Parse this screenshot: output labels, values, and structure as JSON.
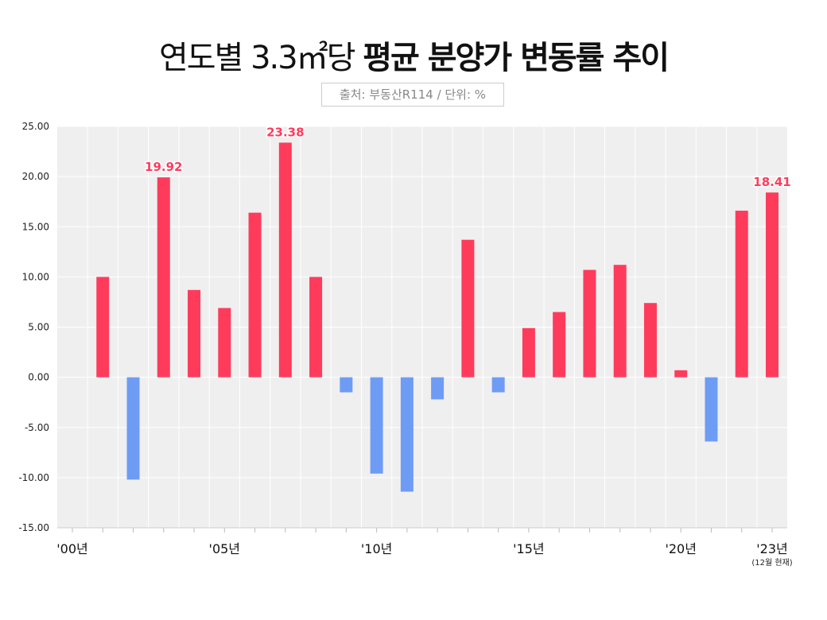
{
  "chart_data": {
    "type": "bar",
    "title_regular": "연도별 3.3㎡당",
    "title_bold": "평균 분양가 변동률 추이",
    "source": "출처: 부동산R114 / 단위: %",
    "categories": [
      "2000",
      "2001",
      "2002",
      "2003",
      "2004",
      "2005",
      "2006",
      "2007",
      "2008",
      "2009",
      "2010",
      "2011",
      "2012",
      "2013",
      "2014",
      "2015",
      "2016",
      "2017",
      "2018",
      "2019",
      "2020",
      "2021",
      "2022",
      "2023"
    ],
    "values": [
      0,
      10.0,
      -10.2,
      19.92,
      8.7,
      6.9,
      16.4,
      23.38,
      10.0,
      -1.5,
      -9.6,
      -11.4,
      -2.2,
      13.7,
      -1.5,
      4.9,
      6.5,
      10.7,
      11.2,
      7.4,
      0.7,
      -6.4,
      16.6,
      18.41
    ],
    "ylim": [
      -15,
      25
    ],
    "yticks": [
      "25.00",
      "20.00",
      "15.00",
      "10.00",
      "5.00",
      "0.00",
      "-5.00",
      "-10.00",
      "-15.00"
    ],
    "xtick_labels": [
      {
        "year": "2000",
        "label": "'00년"
      },
      {
        "year": "2005",
        "label": "'05년"
      },
      {
        "year": "2010",
        "label": "'10년"
      },
      {
        "year": "2015",
        "label": "'15년"
      },
      {
        "year": "2020",
        "label": "'20년"
      },
      {
        "year": "2023",
        "label": "'23년"
      }
    ],
    "x_note": "(12월 현재)",
    "data_labels": [
      {
        "year": "2003",
        "label": "19.92"
      },
      {
        "year": "2007",
        "label": "23.38"
      },
      {
        "year": "2023",
        "label": "18.41"
      }
    ],
    "grid": true,
    "colors": {
      "positive": "#ff3b5c",
      "negative": "#6e9cf5",
      "plot_bg": "#efefef"
    }
  }
}
